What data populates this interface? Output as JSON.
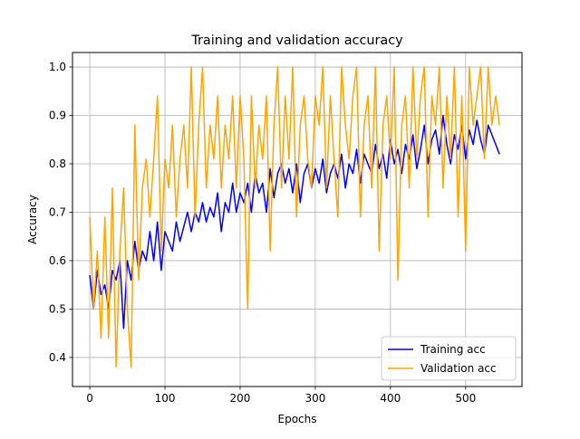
{
  "chart_data": {
    "type": "line",
    "title": "Training and validation accuracy",
    "xlabel": "Epochs",
    "ylabel": "Accuracy",
    "xlim": [
      -23,
      575
    ],
    "ylim": [
      0.34,
      1.03
    ],
    "xticks": [
      0,
      100,
      200,
      300,
      400,
      500
    ],
    "yticks": [
      0.4,
      0.5,
      0.6,
      0.7,
      0.8,
      0.9,
      1.0
    ],
    "xtick_labels": [
      "0",
      "100",
      "200",
      "300",
      "400",
      "500"
    ],
    "ytick_labels": [
      "0.4",
      "0.5",
      "0.6",
      "0.7",
      "0.8",
      "0.9",
      "1.0"
    ],
    "grid": true,
    "legend_position": "lower-right",
    "series": [
      {
        "name": "Training acc",
        "color": "#0000ff",
        "x": [
          0,
          5,
          10,
          15,
          20,
          25,
          30,
          35,
          40,
          45,
          50,
          55,
          60,
          65,
          70,
          75,
          80,
          85,
          90,
          95,
          100,
          105,
          110,
          115,
          120,
          125,
          130,
          135,
          140,
          145,
          150,
          155,
          160,
          165,
          170,
          175,
          180,
          185,
          190,
          195,
          200,
          205,
          210,
          215,
          220,
          225,
          230,
          235,
          240,
          245,
          250,
          255,
          260,
          265,
          270,
          275,
          280,
          285,
          290,
          295,
          300,
          305,
          310,
          315,
          320,
          325,
          330,
          335,
          340,
          345,
          350,
          355,
          360,
          365,
          370,
          375,
          380,
          385,
          390,
          395,
          400,
          405,
          410,
          415,
          420,
          425,
          430,
          435,
          440,
          445,
          450,
          455,
          460,
          465,
          470,
          475,
          480,
          485,
          490,
          495,
          500,
          505,
          510,
          515,
          520,
          525,
          530,
          535,
          540,
          545
        ],
        "values": [
          0.57,
          0.5,
          0.58,
          0.53,
          0.55,
          0.5,
          0.58,
          0.56,
          0.6,
          0.46,
          0.6,
          0.56,
          0.64,
          0.58,
          0.62,
          0.6,
          0.66,
          0.6,
          0.68,
          0.58,
          0.66,
          0.64,
          0.62,
          0.68,
          0.64,
          0.67,
          0.7,
          0.66,
          0.7,
          0.68,
          0.72,
          0.68,
          0.71,
          0.69,
          0.74,
          0.66,
          0.72,
          0.7,
          0.76,
          0.7,
          0.74,
          0.72,
          0.76,
          0.7,
          0.78,
          0.74,
          0.76,
          0.7,
          0.79,
          0.73,
          0.78,
          0.8,
          0.76,
          0.79,
          0.74,
          0.8,
          0.72,
          0.78,
          0.8,
          0.75,
          0.79,
          0.76,
          0.81,
          0.74,
          0.78,
          0.8,
          0.77,
          0.82,
          0.75,
          0.8,
          0.78,
          0.83,
          0.76,
          0.82,
          0.8,
          0.78,
          0.84,
          0.79,
          0.82,
          0.77,
          0.85,
          0.8,
          0.83,
          0.78,
          0.84,
          0.81,
          0.86,
          0.79,
          0.83,
          0.88,
          0.8,
          0.85,
          0.87,
          0.82,
          0.9,
          0.84,
          0.8,
          0.86,
          0.83,
          0.88,
          0.81,
          0.87,
          0.84,
          0.89,
          0.85,
          0.82,
          0.88,
          0.86,
          0.84,
          0.82
        ]
      },
      {
        "name": "Validation acc",
        "color": "#ffa500",
        "x": [
          0,
          5,
          10,
          15,
          20,
          25,
          30,
          35,
          40,
          45,
          50,
          55,
          60,
          65,
          70,
          75,
          80,
          85,
          90,
          95,
          100,
          105,
          110,
          115,
          120,
          125,
          130,
          135,
          140,
          145,
          150,
          155,
          160,
          165,
          170,
          175,
          180,
          185,
          190,
          195,
          200,
          205,
          210,
          215,
          220,
          225,
          230,
          235,
          240,
          245,
          250,
          255,
          260,
          265,
          270,
          275,
          280,
          285,
          290,
          295,
          300,
          305,
          310,
          315,
          320,
          325,
          330,
          335,
          340,
          345,
          350,
          355,
          360,
          365,
          370,
          375,
          380,
          385,
          390,
          395,
          400,
          405,
          410,
          415,
          420,
          425,
          430,
          435,
          440,
          445,
          450,
          455,
          460,
          465,
          470,
          475,
          480,
          485,
          490,
          495,
          500,
          505,
          510,
          515,
          520,
          525,
          530,
          535,
          540,
          545
        ],
        "values": [
          0.69,
          0.5,
          0.62,
          0.44,
          0.69,
          0.44,
          0.75,
          0.38,
          0.62,
          0.75,
          0.5,
          0.38,
          0.88,
          0.56,
          0.75,
          0.81,
          0.69,
          0.81,
          0.94,
          0.62,
          0.81,
          0.75,
          0.88,
          0.69,
          0.81,
          0.88,
          0.75,
          1.0,
          0.69,
          0.88,
          1.0,
          0.75,
          0.88,
          0.81,
          0.94,
          0.75,
          0.88,
          0.81,
          0.94,
          0.75,
          0.94,
          0.81,
          0.5,
          0.94,
          0.75,
          0.88,
          0.81,
          0.94,
          0.62,
          0.88,
          1.0,
          0.75,
          0.94,
          0.81,
          1.0,
          0.69,
          0.88,
          0.94,
          0.81,
          0.75,
          0.94,
          0.88,
          1.0,
          0.75,
          0.94,
          0.81,
          0.69,
          1.0,
          0.88,
          0.81,
          0.94,
          1.0,
          0.69,
          0.88,
          0.94,
          0.75,
          1.0,
          0.62,
          0.88,
          0.94,
          0.81,
          1.0,
          0.56,
          0.88,
          0.94,
          0.75,
          1.0,
          0.81,
          0.94,
          1.0,
          0.69,
          0.94,
          0.88,
          1.0,
          0.75,
          0.94,
          0.81,
          1.0,
          0.69,
          0.94,
          0.62,
          1.0,
          0.88,
          0.94,
          1.0,
          0.81,
          1.0,
          0.88,
          0.94,
          0.88
        ]
      }
    ]
  }
}
